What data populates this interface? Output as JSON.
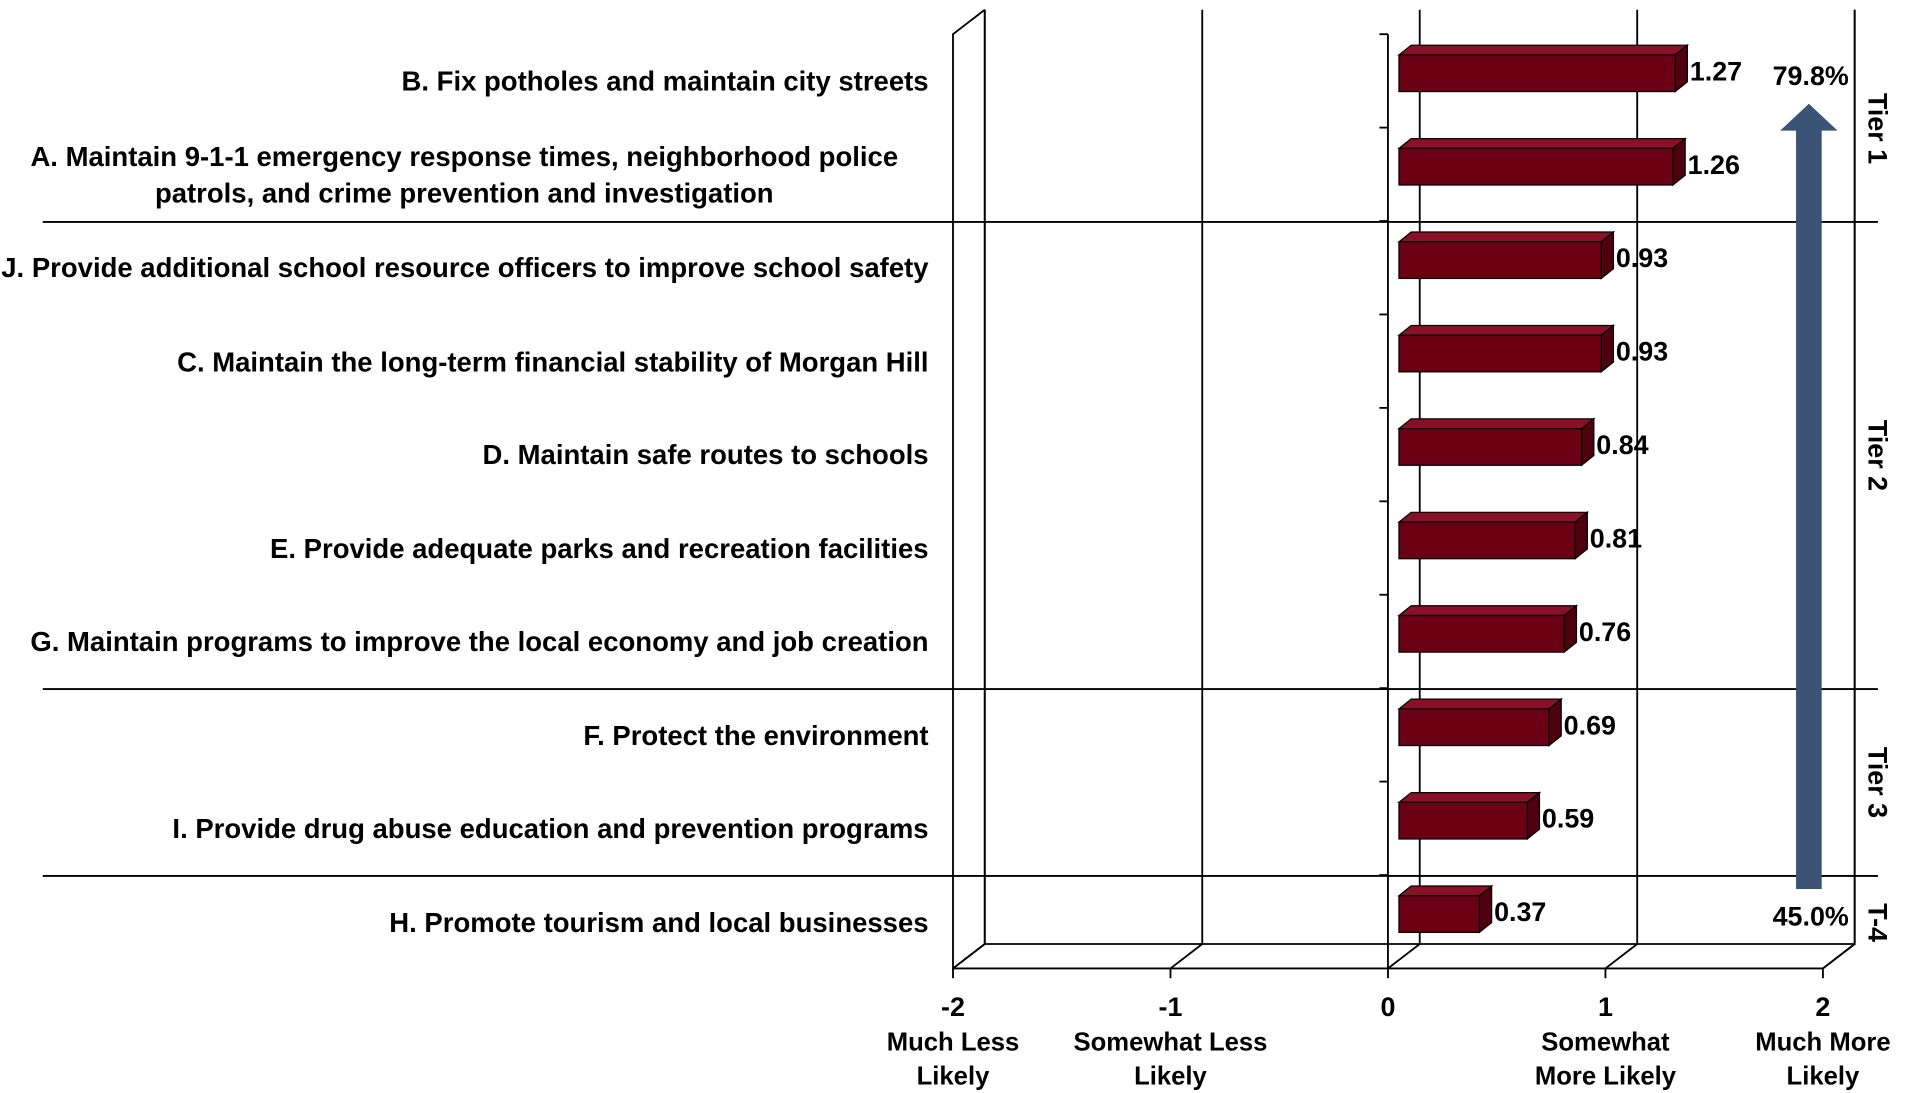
{
  "chart_data": {
    "type": "bar",
    "orientation": "horizontal",
    "categories": [
      "B. Fix potholes and maintain city streets",
      "A. Maintain 9-1-1 emergency response times, neighborhood police patrols, and crime prevention and investigation",
      "J. Provide additional school resource officers to improve school safety",
      "C. Maintain the long-term financial stability of Morgan Hill",
      "D. Maintain safe routes to schools",
      "E. Provide adequate parks and recreation facilities",
      "G. Maintain programs to improve the local economy and job creation",
      "F. Protect the environment",
      "I. Provide drug abuse education and prevention programs",
      "H. Promote tourism and local businesses"
    ],
    "values": [
      1.27,
      1.26,
      0.93,
      0.93,
      0.84,
      0.81,
      0.76,
      0.69,
      0.59,
      0.37
    ],
    "color": "#6b0015",
    "xlim": [
      -2,
      2
    ],
    "xticks": [
      -2,
      -1,
      0,
      1,
      2
    ],
    "axis_labels": [
      {
        "value": -2,
        "label": "Much Less Likely"
      },
      {
        "value": -1,
        "label": "Somewhat Less Likely"
      },
      {
        "value": 1,
        "label": "Somewhat More Likely"
      },
      {
        "value": 2,
        "label": "Much More Likely"
      }
    ],
    "grid": true,
    "tiers": [
      {
        "label": "Tier 1",
        "size": 2
      },
      {
        "label": "Tier 2",
        "size": 5
      },
      {
        "label": "Tier 3",
        "size": 2
      },
      {
        "label": "T-4",
        "size": 1
      }
    ],
    "arrow_top_label": "79.8%",
    "arrow_bottom_label": "45.0%",
    "arrow_color": "#3b5374"
  }
}
